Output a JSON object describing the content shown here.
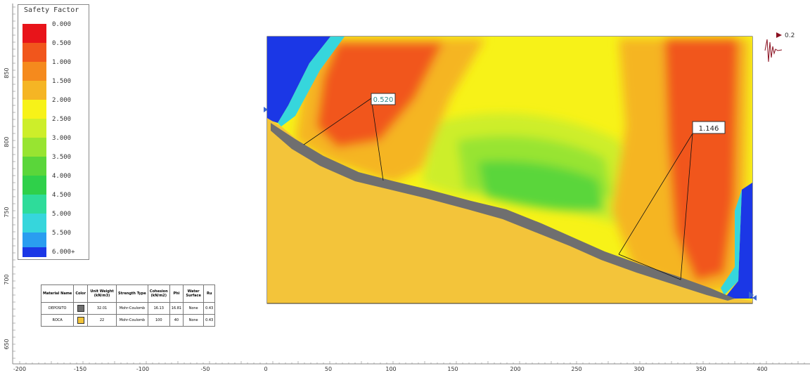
{
  "legend": {
    "title": "Safety Factor",
    "items": [
      {
        "label": "0.000",
        "color": "#e8141a"
      },
      {
        "label": "0.500",
        "color": "#f1561c"
      },
      {
        "label": "1.000",
        "color": "#f58a1d"
      },
      {
        "label": "1.500",
        "color": "#f5b524"
      },
      {
        "label": "2.000",
        "color": "#f7f218"
      },
      {
        "label": "2.500",
        "color": "#cdee2a"
      },
      {
        "label": "3.000",
        "color": "#98e431"
      },
      {
        "label": "3.500",
        "color": "#5ad63a"
      },
      {
        "label": "4.000",
        "color": "#2fd04a"
      },
      {
        "label": "4.500",
        "color": "#2edc9a"
      },
      {
        "label": "5.000",
        "color": "#36d6dc"
      },
      {
        "label": "5.500",
        "color": "#2a9df0"
      },
      {
        "label": "6.000+",
        "color": "#1b37e6"
      }
    ]
  },
  "colors": {
    "ground": "#f3c43a",
    "deposit": "#6f6f6f",
    "outline": "#333333"
  },
  "x_axis": {
    "ticks": [
      "-200",
      "-150",
      "-100",
      "-50",
      "0",
      "50",
      "100",
      "150",
      "200",
      "250",
      "300",
      "350",
      "400"
    ]
  },
  "y_axis": {
    "ticks": [
      "650",
      "700",
      "750",
      "800",
      "850"
    ]
  },
  "annotations": {
    "fs_left": "0.520",
    "fs_right": "1.146",
    "seismic": "0.2"
  },
  "material_table": {
    "headers": [
      "Material Name",
      "Color",
      "Unit Weight (kN/m3)",
      "Strength Type",
      "Cohesion (kN/m2)",
      "Phi",
      "Water Surface",
      "Ru"
    ],
    "rows": [
      {
        "name": "DEPOSITO",
        "swatch": "#6f6f6f",
        "unit_weight": "32.01",
        "strength": "Mohr-Coulomb",
        "cohesion": "16.13",
        "phi": "16.81",
        "water": "None",
        "ru": "0.43"
      },
      {
        "name": "ROCA",
        "swatch": "#f3c43a",
        "unit_weight": "22",
        "strength": "Mohr-Coulomb",
        "cohesion": "100",
        "phi": "40",
        "water": "None",
        "ru": "0.43"
      }
    ]
  }
}
